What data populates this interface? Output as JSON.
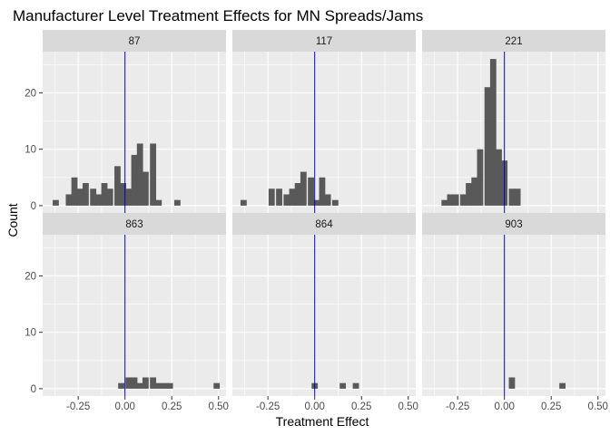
{
  "chart_data": {
    "type": "bar",
    "title": "Manufacturer Level Treatment Effects for MN Spreads/Jams",
    "xlabel": "Treatment Effect",
    "ylabel": "Count",
    "xlim": [
      -0.44,
      0.54
    ],
    "ylim": [
      -1.3,
      27.3
    ],
    "x_ticks": [
      -0.25,
      0.0,
      0.25,
      0.5
    ],
    "x_tick_labels": [
      "-0.25",
      "0.00",
      "0.25",
      "0.50"
    ],
    "y_ticks": [
      0,
      10,
      20
    ],
    "y_tick_labels": [
      "0",
      "10",
      "20"
    ],
    "bin_width": 0.033,
    "reference_line_x": 0,
    "colors": {
      "bar": "#595959",
      "panel_bg": "#ebebeb",
      "strip_bg": "#d9d9d9",
      "grid": "#ffffff",
      "reference_line": "#0000cc"
    },
    "grid": true,
    "facets": [
      {
        "label": "87",
        "bins": [
          {
            "x": -0.37,
            "count": 1
          },
          {
            "x": -0.3,
            "count": 2
          },
          {
            "x": -0.27,
            "count": 5
          },
          {
            "x": -0.24,
            "count": 3
          },
          {
            "x": -0.21,
            "count": 4
          },
          {
            "x": -0.17,
            "count": 3
          },
          {
            "x": -0.14,
            "count": 2
          },
          {
            "x": -0.11,
            "count": 4
          },
          {
            "x": -0.08,
            "count": 3
          },
          {
            "x": -0.04,
            "count": 7
          },
          {
            "x": -0.01,
            "count": 4
          },
          {
            "x": 0.02,
            "count": 3
          },
          {
            "x": 0.05,
            "count": 9
          },
          {
            "x": 0.08,
            "count": 11
          },
          {
            "x": 0.11,
            "count": 6
          },
          {
            "x": 0.15,
            "count": 11
          },
          {
            "x": 0.18,
            "count": 1
          },
          {
            "x": 0.28,
            "count": 1
          }
        ]
      },
      {
        "label": "117",
        "bins": [
          {
            "x": -0.38,
            "count": 1
          },
          {
            "x": -0.23,
            "count": 3
          },
          {
            "x": -0.19,
            "count": 3
          },
          {
            "x": -0.15,
            "count": 2
          },
          {
            "x": -0.12,
            "count": 3
          },
          {
            "x": -0.09,
            "count": 4
          },
          {
            "x": -0.06,
            "count": 6
          },
          {
            "x": -0.02,
            "count": 5
          },
          {
            "x": 0.01,
            "count": 1
          },
          {
            "x": 0.04,
            "count": 5
          },
          {
            "x": 0.07,
            "count": 2
          },
          {
            "x": 0.11,
            "count": 1
          }
        ]
      },
      {
        "label": "221",
        "bins": [
          {
            "x": -0.32,
            "count": 1
          },
          {
            "x": -0.29,
            "count": 2
          },
          {
            "x": -0.26,
            "count": 2
          },
          {
            "x": -0.22,
            "count": 2
          },
          {
            "x": -0.19,
            "count": 4
          },
          {
            "x": -0.16,
            "count": 5
          },
          {
            "x": -0.13,
            "count": 10
          },
          {
            "x": -0.09,
            "count": 21
          },
          {
            "x": -0.06,
            "count": 26
          },
          {
            "x": -0.03,
            "count": 10
          },
          {
            "x": 0.0,
            "count": 8
          },
          {
            "x": 0.04,
            "count": 3
          },
          {
            "x": 0.07,
            "count": 3
          }
        ]
      },
      {
        "label": "863",
        "bins": [
          {
            "x": -0.02,
            "count": 1
          },
          {
            "x": 0.02,
            "count": 2
          },
          {
            "x": 0.05,
            "count": 2
          },
          {
            "x": 0.08,
            "count": 1
          },
          {
            "x": 0.11,
            "count": 2
          },
          {
            "x": 0.15,
            "count": 2
          },
          {
            "x": 0.18,
            "count": 1
          },
          {
            "x": 0.21,
            "count": 1
          },
          {
            "x": 0.24,
            "count": 1
          },
          {
            "x": 0.49,
            "count": 1
          }
        ]
      },
      {
        "label": "864",
        "bins": [
          {
            "x": 0.0,
            "count": 1
          },
          {
            "x": 0.15,
            "count": 1
          },
          {
            "x": 0.22,
            "count": 1
          }
        ]
      },
      {
        "label": "903",
        "bins": [
          {
            "x": 0.04,
            "count": 2
          },
          {
            "x": 0.31,
            "count": 1
          }
        ]
      }
    ]
  }
}
